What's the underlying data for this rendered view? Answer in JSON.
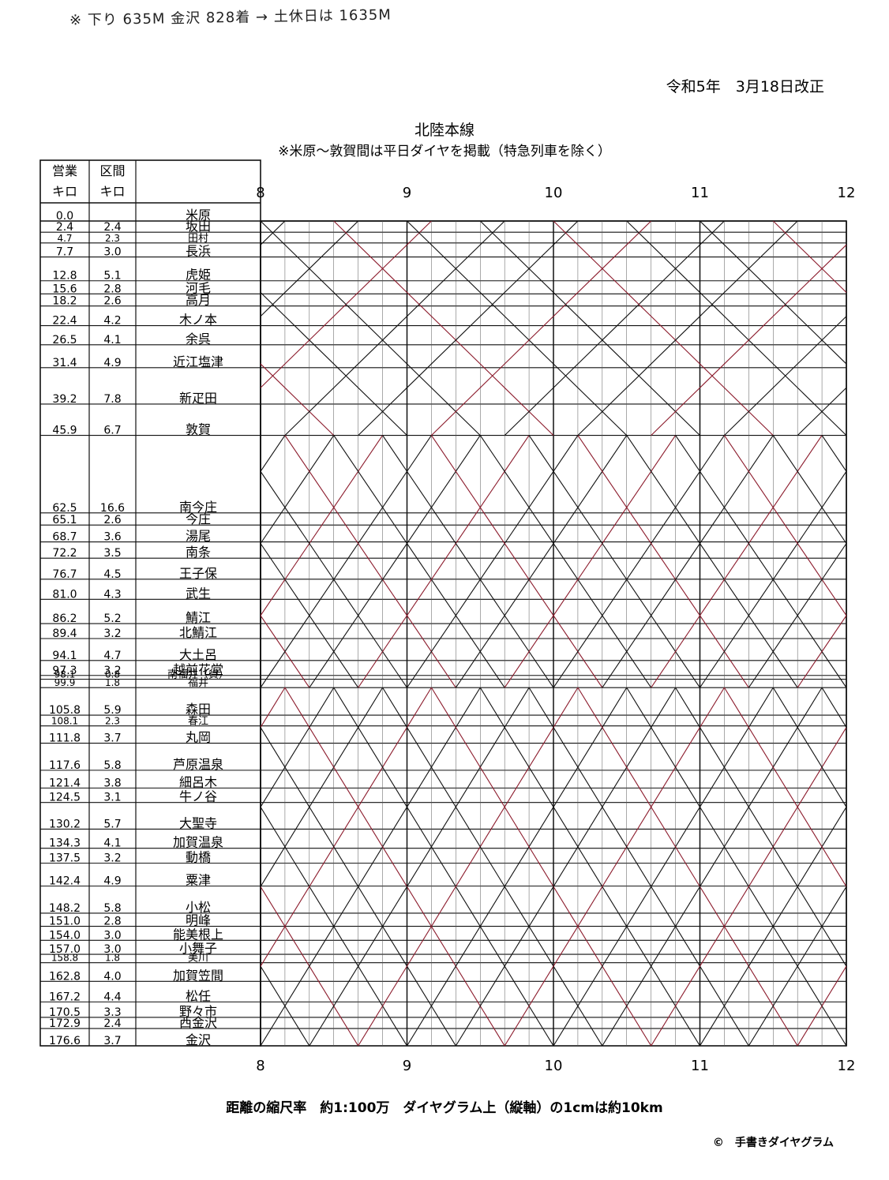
{
  "header": {
    "hand_note": "※ 下り 635M 金沢 828着 → 土休日は 1635M",
    "revision": "令和5年　3月18日改正",
    "title": "北陸本線",
    "subtitle": "※米原～敦賀間は平日ダイヤを掲載（特急列車を除く）"
  },
  "table": {
    "col_km_header": [
      "営業",
      "キロ"
    ],
    "col_sec_header": [
      "区間",
      "キロ"
    ]
  },
  "stations": [
    {
      "name": "米原",
      "km": "0.0",
      "sec": ""
    },
    {
      "name": "坂田",
      "km": "2.4",
      "sec": "2.4"
    },
    {
      "name": "田村",
      "km": "4.7",
      "sec": "2.3"
    },
    {
      "name": "長浜",
      "km": "7.7",
      "sec": "3.0"
    },
    {
      "name": "虎姫",
      "km": "12.8",
      "sec": "5.1"
    },
    {
      "name": "河毛",
      "km": "15.6",
      "sec": "2.8"
    },
    {
      "name": "高月",
      "km": "18.2",
      "sec": "2.6"
    },
    {
      "name": "木ノ本",
      "km": "22.4",
      "sec": "4.2"
    },
    {
      "name": "余呉",
      "km": "26.5",
      "sec": "4.1"
    },
    {
      "name": "近江塩津",
      "km": "31.4",
      "sec": "4.9"
    },
    {
      "name": "新疋田",
      "km": "39.2",
      "sec": "7.8"
    },
    {
      "name": "敦賀",
      "km": "45.9",
      "sec": "6.7"
    },
    {
      "name": "南今庄",
      "km": "62.5",
      "sec": "16.6"
    },
    {
      "name": "今庄",
      "km": "65.1",
      "sec": "2.6"
    },
    {
      "name": "湯尾",
      "km": "68.7",
      "sec": "3.6"
    },
    {
      "name": "南条",
      "km": "72.2",
      "sec": "3.5"
    },
    {
      "name": "王子保",
      "km": "76.7",
      "sec": "4.5"
    },
    {
      "name": "武生",
      "km": "81.0",
      "sec": "4.3"
    },
    {
      "name": "鯖江",
      "km": "86.2",
      "sec": "5.2"
    },
    {
      "name": "北鯖江",
      "km": "89.4",
      "sec": "3.2"
    },
    {
      "name": "大土呂",
      "km": "94.1",
      "sec": "4.7"
    },
    {
      "name": "越前花堂",
      "km": "97.3",
      "sec": "3.2"
    },
    {
      "name": "南福井（貨）",
      "km": "98.1",
      "sec": "0.8"
    },
    {
      "name": "福井",
      "km": "99.9",
      "sec": "1.8"
    },
    {
      "name": "森田",
      "km": "105.8",
      "sec": "5.9"
    },
    {
      "name": "春江",
      "km": "108.1",
      "sec": "2.3"
    },
    {
      "name": "丸岡",
      "km": "111.8",
      "sec": "3.7"
    },
    {
      "name": "芦原温泉",
      "km": "117.6",
      "sec": "5.8"
    },
    {
      "name": "細呂木",
      "km": "121.4",
      "sec": "3.8"
    },
    {
      "name": "牛ノ谷",
      "km": "124.5",
      "sec": "3.1"
    },
    {
      "name": "大聖寺",
      "km": "130.2",
      "sec": "5.7"
    },
    {
      "name": "加賀温泉",
      "km": "134.3",
      "sec": "4.1"
    },
    {
      "name": "動橋",
      "km": "137.5",
      "sec": "3.2"
    },
    {
      "name": "粟津",
      "km": "142.4",
      "sec": "4.9"
    },
    {
      "name": "小松",
      "km": "148.2",
      "sec": "5.8"
    },
    {
      "name": "明峰",
      "km": "151.0",
      "sec": "2.8"
    },
    {
      "name": "能美根上",
      "km": "154.0",
      "sec": "3.0"
    },
    {
      "name": "小舞子",
      "km": "157.0",
      "sec": "3.0"
    },
    {
      "name": "美川",
      "km": "158.8",
      "sec": "1.8"
    },
    {
      "name": "加賀笠間",
      "km": "162.8",
      "sec": "4.0"
    },
    {
      "name": "松任",
      "km": "167.2",
      "sec": "4.4"
    },
    {
      "name": "野々市",
      "km": "170.5",
      "sec": "3.3"
    },
    {
      "name": "西金沢",
      "km": "172.9",
      "sec": "2.4"
    },
    {
      "name": "金沢",
      "km": "176.6",
      "sec": "3.7"
    }
  ],
  "hours": [
    "8",
    "9",
    "10",
    "11",
    "12"
  ],
  "footer": {
    "scale": "距離の縮尺率　約1:100万　ダイヤグラム上（縦軸）の1cmは約10km",
    "credit": "©　手書きダイヤグラム"
  },
  "colors": {
    "line_black": "#111111",
    "line_red": "#8b1a2b"
  }
}
